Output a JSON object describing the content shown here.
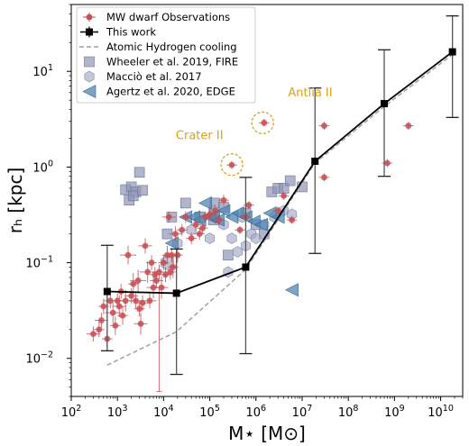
{
  "chart_data": {
    "type": "scatter",
    "xscale": "log",
    "yscale": "log",
    "xlim": [
      100,
      30000000000
    ],
    "ylim": [
      0.004,
      50
    ],
    "xlabel": "M⋆ [M⊙]",
    "ylabel": "rₕ [kpc]",
    "xticks": [
      {
        "value": 100,
        "base": "10",
        "exp": "2"
      },
      {
        "value": 1000,
        "base": "10",
        "exp": "3"
      },
      {
        "value": 10000,
        "base": "10",
        "exp": "4"
      },
      {
        "value": 100000,
        "base": "10",
        "exp": "5"
      },
      {
        "value": 1000000,
        "base": "10",
        "exp": "6"
      },
      {
        "value": 10000000,
        "base": "10",
        "exp": "7"
      },
      {
        "value": 100000000,
        "base": "10",
        "exp": "8"
      },
      {
        "value": 1000000000,
        "base": "10",
        "exp": "9"
      },
      {
        "value": 10000000000,
        "base": "10",
        "exp": "10"
      }
    ],
    "yticks": [
      {
        "value": 0.01,
        "base": "10",
        "exp": "−2"
      },
      {
        "value": 0.1,
        "base": "10",
        "exp": "−1"
      },
      {
        "value": 1,
        "base": "10",
        "exp": "0"
      },
      {
        "value": 10,
        "base": "10",
        "exp": "1"
      }
    ],
    "legend_position": "top-left",
    "colors": {
      "observations": "#c44e52",
      "this_work": "#000000",
      "hydrogen": "#a0a0a0",
      "wheeler": "#8e96b5",
      "maccio": "#a3a9c4",
      "agertz": "#4f86b3",
      "annotation": "#d9a21b"
    },
    "legend": [
      {
        "key": "observations",
        "label": "MW dwarf Observations"
      },
      {
        "key": "this_work",
        "label": "This work"
      },
      {
        "key": "hydrogen",
        "label": "Atomic Hydrogen cooling"
      },
      {
        "key": "wheeler",
        "label": "Wheeler et al. 2019, FIRE"
      },
      {
        "key": "maccio",
        "label": "Macciò et al. 2017"
      },
      {
        "key": "agertz",
        "label": "Agertz et al. 2020, EDGE"
      }
    ],
    "this_work": {
      "x": [
        600,
        19000,
        600000,
        19000000,
        600000000,
        18000000000
      ],
      "y": [
        0.05,
        0.048,
        0.09,
        1.15,
        4.6,
        16
      ],
      "err_low": [
        0.012,
        0.0068,
        0.0112,
        0.125,
        0.8,
        3.3
      ],
      "err_high": [
        0.152,
        0.139,
        0.78,
        6.7,
        16.8,
        38
      ]
    },
    "hydrogen": {
      "x": [
        600,
        19000,
        600000,
        19000000,
        600000000,
        18000000000
      ],
      "y": [
        0.0085,
        0.019,
        0.085,
        1.1,
        4.3,
        15
      ]
    },
    "observations": {
      "x": [
        300,
        400,
        450,
        500,
        600,
        700,
        800,
        900,
        1000,
        1100,
        1200,
        1300,
        1500,
        1700,
        2000,
        2200,
        2500,
        2800,
        3000,
        3200,
        3500,
        4000,
        4500,
        5000,
        5500,
        6000,
        6500,
        7000,
        8000,
        9000,
        10000,
        11000,
        12000,
        13000,
        14000,
        15000,
        16000,
        18000,
        20000,
        25000,
        30000,
        40000,
        50000,
        60000,
        70000,
        80000,
        100000,
        130000,
        160000,
        200000,
        300000,
        450000,
        600000,
        700000,
        1500000,
        3000000,
        4000000,
        6000000,
        30000000,
        30000000,
        700000000,
        2000000000
      ],
      "y": [
        0.018,
        0.02,
        0.025,
        0.035,
        0.016,
        0.04,
        0.03,
        0.022,
        0.04,
        0.035,
        0.05,
        0.028,
        0.04,
        0.12,
        0.045,
        0.06,
        0.04,
        0.065,
        0.033,
        0.023,
        0.038,
        0.15,
        0.08,
        0.04,
        0.1,
        0.055,
        0.075,
        0.065,
        0.08,
        0.055,
        0.1,
        0.075,
        0.12,
        0.3,
        0.08,
        0.12,
        0.09,
        0.2,
        0.12,
        0.22,
        0.3,
        0.18,
        0.25,
        0.2,
        0.23,
        0.3,
        0.32,
        0.35,
        0.28,
        0.45,
        1.05,
        0.22,
        0.3,
        0.4,
        2.9,
        0.35,
        0.5,
        0.28,
        2.7,
        0.78,
        1.1,
        2.7
      ],
      "xerr": [
        1.4,
        1.3,
        1.4,
        1.3,
        1.3,
        1.4,
        1.5,
        1.3,
        1.3,
        1.4,
        1.4,
        1.3,
        1.4,
        1.5,
        1.4,
        1.3,
        1.4,
        1.5,
        1.3,
        1.4,
        1.3,
        1.4,
        1.5,
        1.4,
        1.3,
        1.4,
        1.3,
        1.4,
        1.3,
        1.4,
        1.3,
        1.4,
        1.3,
        1.4,
        1.3,
        1.4,
        1.3,
        1.4,
        1.3,
        1.3,
        1.3,
        1.3,
        1.3,
        1.3,
        1.3,
        1.3,
        1.3,
        1.3,
        1.3,
        1.3,
        1.3,
        1.3,
        1.3,
        1.3,
        1.3,
        1.3,
        1.3,
        1.3,
        1.3,
        1.3,
        1.3,
        1.3
      ],
      "yerr": [
        1.2,
        1.2,
        1.2,
        1.2,
        1.25,
        1.2,
        1.3,
        1.25,
        1.2,
        1.3,
        1.2,
        1.25,
        1.3,
        1.25,
        1.2,
        1.3,
        1.2,
        1.3,
        1.2,
        1.3,
        1.2,
        1.2,
        1.3,
        1.2,
        1.2,
        1.3,
        1.2,
        1.2,
        1.2,
        1.3,
        1.2,
        1.2,
        1.25,
        1.15,
        1.2,
        1.2,
        1.3,
        1.2,
        1.2,
        1.15,
        1.15,
        1.15,
        1.15,
        1.15,
        1.15,
        1.15,
        1.15,
        1.15,
        1.15,
        1.15,
        1.1,
        1.1,
        1.1,
        1.1,
        1.1,
        1.1,
        1.1,
        1.1,
        1.1,
        1.1,
        1.1,
        1.1
      ],
      "low_error_bar": {
        "x": 8000,
        "y": 0.055,
        "ylow": 0.0045
      }
    },
    "wheeler": {
      "x": [
        1500,
        2000,
        2500,
        3000,
        1800,
        2200,
        3500,
        12000,
        15000,
        30000,
        60000,
        120000,
        130000,
        200000,
        250000,
        600000,
        1000000,
        1500000,
        2200000,
        3000000,
        4000000,
        5500000,
        10000000
      ],
      "y": [
        0.58,
        0.62,
        0.55,
        0.88,
        0.45,
        0.5,
        0.57,
        0.2,
        0.3,
        0.42,
        0.3,
        0.28,
        0.42,
        0.38,
        0.12,
        0.33,
        0.25,
        0.2,
        0.55,
        0.6,
        0.6,
        0.72,
        0.62
      ]
    },
    "maccio": {
      "x": [
        20000,
        40000,
        70000,
        100000,
        120000,
        200000,
        250000,
        300000,
        400000,
        500000,
        600000,
        800000,
        1000000,
        1500000,
        2500000,
        4000000,
        6000000
      ],
      "y": [
        0.16,
        0.22,
        0.3,
        0.18,
        0.35,
        0.25,
        0.08,
        0.18,
        0.13,
        0.3,
        0.15,
        0.2,
        0.18,
        0.25,
        0.3,
        0.35,
        0.32
      ],
      "large": {
        "x": 12000,
        "y": 0.1
      }
    },
    "agertz": {
      "x": [
        15000,
        30000,
        45000,
        60000,
        80000,
        100000,
        120000,
        150000,
        200000,
        300000,
        400000,
        600000,
        900000,
        1300000,
        2000000,
        3000000,
        6000000
      ],
      "y": [
        0.16,
        0.3,
        0.3,
        0.28,
        0.42,
        0.3,
        0.3,
        0.28,
        0.35,
        0.3,
        0.33,
        0.3,
        0.27,
        0.25,
        0.33,
        0.3,
        0.052
      ]
    },
    "annotations": [
      {
        "label": "Antlia II",
        "x": 1400000,
        "y": 2.9,
        "tx": 15000000,
        "ty": 5.5,
        "anchor": "middle"
      },
      {
        "label": "Crater II",
        "x": 300000,
        "y": 1.06,
        "tx": 60000,
        "ty": 1.95,
        "anchor": "middle"
      }
    ]
  }
}
